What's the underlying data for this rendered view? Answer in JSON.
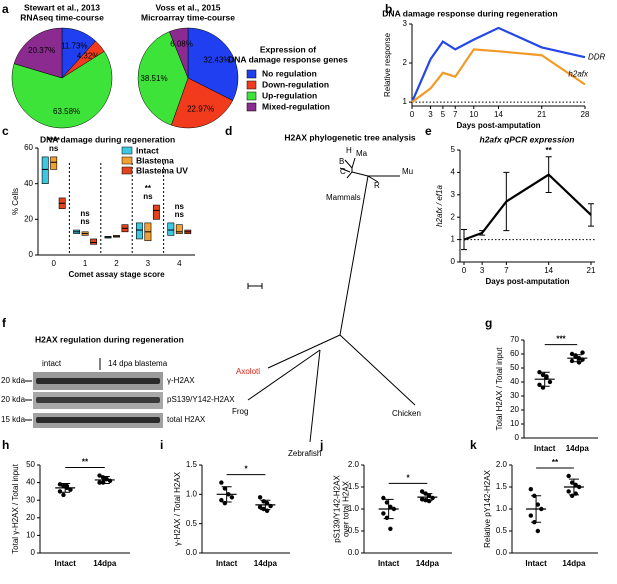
{
  "chart_data": [
    {
      "type": "pie",
      "panel": "a",
      "legend_title": [
        "Expression of",
        "DNA damage response genes"
      ],
      "categories": [
        "No regulation",
        "Down-regulation",
        "Up-regulation",
        "Mixed-regulation"
      ],
      "colors": [
        "#1f3ff0",
        "#f23b1c",
        "#3ee33a",
        "#8c2b8f"
      ],
      "pies": [
        {
          "title": [
            "Stewart et al., 2013",
            "RNAseq time-course"
          ],
          "values": [
            11.73,
            4.32,
            63.58,
            20.37
          ],
          "value_labels": [
            "11.73%",
            "4.32%",
            "63.58%",
            "20.37%"
          ]
        },
        {
          "title": [
            "Voss et al., 2015",
            "Microarray time-course"
          ],
          "values": [
            32.43,
            22.97,
            38.51,
            6.08
          ],
          "value_labels": [
            "32.43%",
            "22.97%",
            "38.51%",
            "6.08%"
          ]
        }
      ]
    },
    {
      "type": "line",
      "panel": "b",
      "title": "DNA damage response during regeneration",
      "y_label": "Relative response",
      "x_label": "Days post-amputation",
      "x": [
        0,
        3,
        5,
        7,
        10,
        14,
        21,
        28
      ],
      "series": [
        {
          "name": "DDR",
          "color": "#2447e8",
          "values": [
            1,
            2.1,
            2.55,
            2.35,
            2.6,
            2.9,
            2.4,
            2.15
          ]
        },
        {
          "name": "h2afx",
          "color": "#f29a26",
          "values": [
            1,
            1.35,
            1.75,
            1.65,
            2.35,
            2.3,
            2.2,
            1.45
          ]
        }
      ],
      "xlim": [
        0,
        28
      ],
      "xticks": [
        0,
        3,
        5,
        7,
        10,
        14,
        21,
        28
      ],
      "ylim": [
        0.9,
        3
      ],
      "yticks": [
        1,
        2,
        3
      ],
      "reference_line": 1
    },
    {
      "type": "floating_bar",
      "panel": "c",
      "title": "DNA damage during regeneration",
      "y_label": "% Cells",
      "x_label": "Comet assay stage score",
      "categories": [
        "0",
        "1",
        "2",
        "3",
        "4"
      ],
      "series": [
        {
          "name": "Intact",
          "color": "#3cc8e0",
          "values": [
            48,
            13,
            10,
            14,
            14
          ],
          "low": [
            40,
            12,
            9.5,
            9,
            11
          ],
          "high": [
            55,
            14,
            10.5,
            18,
            18
          ]
        },
        {
          "name": "Blastema",
          "color": "#f2a032",
          "values": [
            52,
            12,
            10.5,
            13,
            13
          ],
          "low": [
            48,
            11,
            10,
            8,
            12
          ],
          "high": [
            55,
            13,
            11,
            18,
            17
          ]
        },
        {
          "name": "Blastema UV",
          "color": "#e2421e",
          "values": [
            29,
            7,
            15,
            25,
            13
          ],
          "low": [
            26,
            6,
            13,
            20,
            12
          ],
          "high": [
            32,
            9,
            17,
            28,
            14
          ]
        }
      ],
      "annotations": [
        {
          "category": 0,
          "text": "ns"
        },
        {
          "category": 0,
          "text": "****"
        },
        {
          "category": 1,
          "text": "ns"
        },
        {
          "category": 1,
          "text": "ns"
        },
        {
          "category": 3,
          "text": "ns"
        },
        {
          "category": 3,
          "text": "**"
        },
        {
          "category": 4,
          "text": "ns"
        },
        {
          "category": 4,
          "text": "ns"
        }
      ],
      "ylim": [
        0,
        60
      ],
      "yticks": [
        0,
        20,
        40,
        60
      ]
    },
    {
      "type": "line_error",
      "panel": "e",
      "title": "h2afx qPCR expression",
      "y_label": "h2afx / ef1a",
      "x_label": "Days post-amputation",
      "x": [
        0,
        3,
        7,
        14,
        21
      ],
      "values": [
        1,
        1.3,
        2.7,
        3.9,
        2.1
      ],
      "errors": [
        0.45,
        0.1,
        1.3,
        0.8,
        0.5
      ],
      "annotations": [
        {
          "index": 3,
          "text": "**"
        }
      ],
      "xlim": [
        0,
        21
      ],
      "xticks": [
        0,
        3,
        7,
        14,
        21
      ],
      "ylim": [
        0,
        5
      ],
      "yticks": [
        0,
        1,
        2,
        3,
        4,
        5
      ],
      "reference_line": 1
    },
    {
      "type": "dot",
      "panel": "g",
      "y_label": "Total H2AX / Total input",
      "categories": [
        "Intact",
        "14dpa"
      ],
      "points": [
        [
          47,
          45,
          43,
          40,
          38,
          36,
          44
        ],
        [
          60,
          58,
          57,
          56,
          55,
          59,
          54,
          61
        ]
      ],
      "means": [
        42,
        57
      ],
      "sd": [
        5,
        2.5
      ],
      "significance": "***",
      "ylim": [
        0,
        70
      ],
      "yticks": [
        0,
        10,
        20,
        30,
        40,
        50,
        60,
        70
      ]
    },
    {
      "type": "dot",
      "panel": "h",
      "y_label": "Total γ-H2AX / Total input",
      "categories": [
        "Intact",
        "14dpa"
      ],
      "points": [
        [
          39,
          38,
          37,
          36,
          35,
          33,
          38
        ],
        [
          44,
          43,
          42,
          41,
          40,
          40,
          42
        ]
      ],
      "means": [
        37,
        41.5
      ],
      "sd": [
        2.5,
        2
      ],
      "significance": "**",
      "ylim": [
        0,
        50
      ],
      "yticks": [
        0,
        10,
        20,
        30,
        40,
        50
      ]
    },
    {
      "type": "dot",
      "panel": "i",
      "y_label": "γ-H2AX / Total H2AX",
      "categories": [
        "Intact",
        "14dpa"
      ],
      "points": [
        [
          1.2,
          1.1,
          1.0,
          0.95,
          0.9,
          0.85
        ],
        [
          0.95,
          0.88,
          0.85,
          0.8,
          0.78,
          0.75,
          0.72
        ]
      ],
      "means": [
        1.0,
        0.82
      ],
      "sd": [
        0.13,
        0.08
      ],
      "significance": "*",
      "ylim": [
        0,
        1.5
      ],
      "yticks": [
        {
          "value": 0,
          "label": "0.0"
        },
        {
          "value": 0.5,
          "label": "0.5"
        },
        {
          "value": 1,
          "label": "1.0"
        },
        {
          "value": 1.5,
          "label": "1.5"
        }
      ]
    },
    {
      "type": "dot",
      "panel": "j",
      "y_label": [
        "pS139/Y142-H2AX",
        "over total H2AX"
      ],
      "categories": [
        "Intact",
        "14dpa"
      ],
      "points": [
        [
          1.25,
          1.15,
          1.05,
          1.0,
          0.9,
          0.8,
          0.55
        ],
        [
          1.4,
          1.35,
          1.3,
          1.25,
          1.22,
          1.2,
          1.18
        ]
      ],
      "means": [
        1.0,
        1.27
      ],
      "sd": [
        0.22,
        0.08
      ],
      "significance": "*",
      "ylim": [
        0,
        2
      ],
      "yticks": [
        {
          "value": 0,
          "label": "0.0"
        },
        {
          "value": 0.5,
          "label": "0.5"
        },
        {
          "value": 1,
          "label": "1.0"
        },
        {
          "value": 1.5,
          "label": "1.5"
        },
        {
          "value": 2,
          "label": "2.0"
        }
      ]
    },
    {
      "type": "dot",
      "panel": "k",
      "y_label": "Relative pY142-H2AX",
      "categories": [
        "Intact",
        "14dpa"
      ],
      "points": [
        [
          1.45,
          1.3,
          1.1,
          1.0,
          0.85,
          0.7,
          0.5
        ],
        [
          1.75,
          1.6,
          1.55,
          1.5,
          1.4,
          1.3,
          1.35
        ]
      ],
      "means": [
        1.0,
        1.5
      ],
      "sd": [
        0.3,
        0.18
      ],
      "significance": "**",
      "ylim": [
        0,
        2
      ],
      "yticks": [
        {
          "value": 0,
          "label": "0.0"
        },
        {
          "value": 0.5,
          "label": "0.5"
        },
        {
          "value": 1,
          "label": "1.0"
        },
        {
          "value": 1.5,
          "label": "1.5"
        },
        {
          "value": 2,
          "label": "2.0"
        }
      ]
    }
  ],
  "tree": {
    "panel": "d",
    "title": "H2AX phylogenetic tree analysis",
    "labels": [
      "H",
      "Ma",
      "B",
      "C",
      "Mu",
      "R",
      "Mammals",
      "Axolotl",
      "Frog",
      "Zebrafish",
      "Chicken"
    ]
  },
  "blot": {
    "panel": "f",
    "title": "H2AX regulation during regeneration",
    "lanes": [
      "intact",
      "14 dpa blastema"
    ],
    "markers": [
      "20 kda",
      "20 kda",
      "15 kda"
    ],
    "bands": [
      "γ-H2AX",
      "pS139/Y142-H2AX",
      "total H2AX"
    ]
  }
}
